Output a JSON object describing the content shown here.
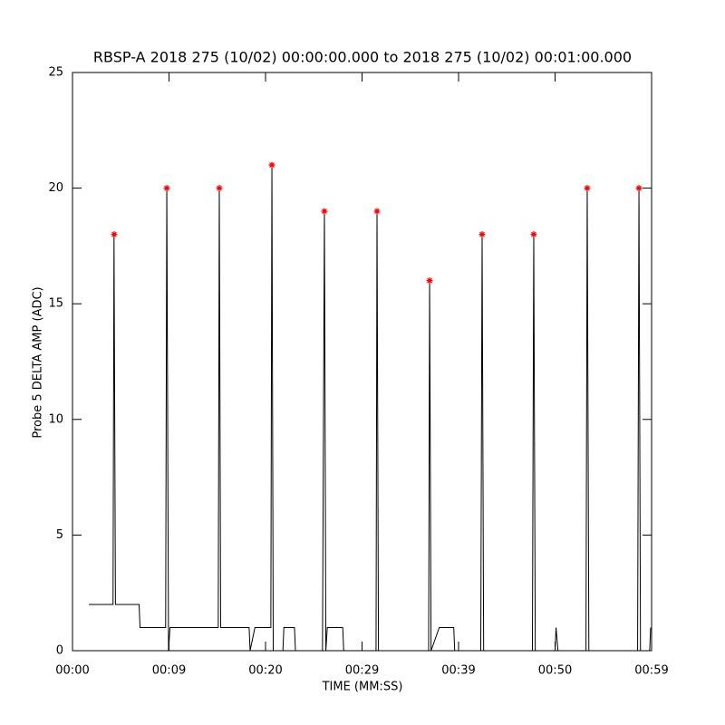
{
  "chart_data": {
    "type": "line",
    "title": "RBSP-A 2018 275 (10/02) 00:00:00.000 to 2018 275 (10/02) 00:01:00.000",
    "x_label": "TIME (MM:SS)",
    "y_label": "Probe 5 DELTA AMP (ADC)",
    "xlim": [
      0,
      60
    ],
    "ylim": [
      0,
      25
    ],
    "xticks": [
      {
        "value": 0,
        "label": "00:00"
      },
      {
        "value": 10,
        "label": "00:09"
      },
      {
        "value": 20,
        "label": "00:20"
      },
      {
        "value": 30,
        "label": "00:29"
      },
      {
        "value": 40,
        "label": "00:39"
      },
      {
        "value": 50,
        "label": "00:50"
      },
      {
        "value": 60,
        "label": "00:59"
      }
    ],
    "yticks": [
      0,
      5,
      10,
      15,
      20,
      25
    ],
    "series": [
      {
        "color": "#000000",
        "marker": "none",
        "x": [
          1.7,
          4.2,
          4.3,
          4.45,
          6.9,
          7.0,
          9.65,
          9.77,
          9.95,
          10.1,
          15.1,
          15.21,
          15.35,
          18.3,
          18.4,
          18.9,
          20.55,
          20.66,
          20.8,
          21.8,
          21.9,
          23.0,
          23.1,
          25.9,
          26.1,
          26.25,
          26.4,
          28.0,
          28.1,
          31.45,
          31.55,
          31.7,
          36.9,
          37.0,
          37.15,
          38.0,
          39.5,
          39.6,
          42.3,
          42.44,
          42.6,
          47.65,
          47.79,
          47.95,
          50.0,
          50.1,
          50.3,
          53.2,
          53.33,
          53.5,
          58.55,
          58.69,
          58.85,
          59.8,
          59.9
        ],
        "values": [
          2,
          2,
          18,
          2,
          2,
          1,
          1,
          20,
          0,
          1,
          1,
          20,
          1,
          1,
          0,
          1,
          1,
          21,
          0,
          0,
          1,
          1,
          0,
          0,
          19,
          0,
          1,
          1,
          0,
          0,
          19,
          0,
          0,
          16,
          0,
          1,
          1,
          0,
          0,
          18,
          0,
          0,
          18,
          0,
          0,
          1,
          0,
          0,
          20,
          0,
          0,
          20,
          0,
          0,
          1
        ]
      },
      {
        "color": "#ff0000",
        "marker": "asterisk",
        "x": [
          4.32,
          9.77,
          15.21,
          20.66,
          26.1,
          31.55,
          37.0,
          42.44,
          47.79,
          53.33,
          58.69
        ],
        "values": [
          18,
          20,
          20,
          21,
          19,
          19,
          16,
          18,
          18,
          20,
          20
        ]
      }
    ]
  }
}
